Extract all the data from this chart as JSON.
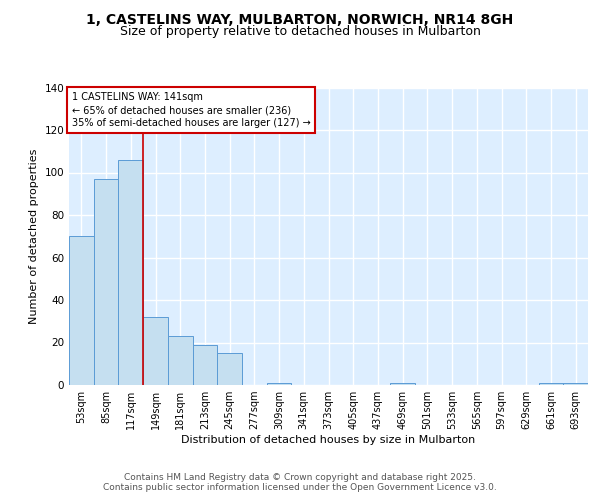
{
  "title1": "1, CASTELINS WAY, MULBARTON, NORWICH, NR14 8GH",
  "title2": "Size of property relative to detached houses in Mulbarton",
  "xlabel": "Distribution of detached houses by size in Mulbarton",
  "ylabel": "Number of detached properties",
  "categories": [
    "53sqm",
    "85sqm",
    "117sqm",
    "149sqm",
    "181sqm",
    "213sqm",
    "245sqm",
    "277sqm",
    "309sqm",
    "341sqm",
    "373sqm",
    "405sqm",
    "437sqm",
    "469sqm",
    "501sqm",
    "533sqm",
    "565sqm",
    "597sqm",
    "629sqm",
    "661sqm",
    "693sqm"
  ],
  "values": [
    70,
    97,
    106,
    32,
    23,
    19,
    15,
    0,
    1,
    0,
    0,
    0,
    0,
    1,
    0,
    0,
    0,
    0,
    0,
    1,
    1
  ],
  "bar_color": "#c5dff0",
  "bar_edge_color": "#5b9bd5",
  "vline_color": "#cc0000",
  "annotation_line1": "1 CASTELINS WAY: 141sqm",
  "annotation_line2": "← 65% of detached houses are smaller (236)",
  "annotation_line3": "35% of semi-detached houses are larger (127) →",
  "annotation_box_color": "#ffffff",
  "annotation_edge_color": "#cc0000",
  "ylim": [
    0,
    140
  ],
  "yticks": [
    0,
    20,
    40,
    60,
    80,
    100,
    120,
    140
  ],
  "footer": "Contains HM Land Registry data © Crown copyright and database right 2025.\nContains public sector information licensed under the Open Government Licence v3.0.",
  "fig_bg_color": "#ffffff",
  "plot_bg_color": "#ddeeff",
  "grid_color": "#ffffff",
  "title_fontsize": 10,
  "subtitle_fontsize": 9,
  "axis_fontsize": 8,
  "tick_fontsize": 7,
  "footer_fontsize": 6.5,
  "vline_index": 3
}
